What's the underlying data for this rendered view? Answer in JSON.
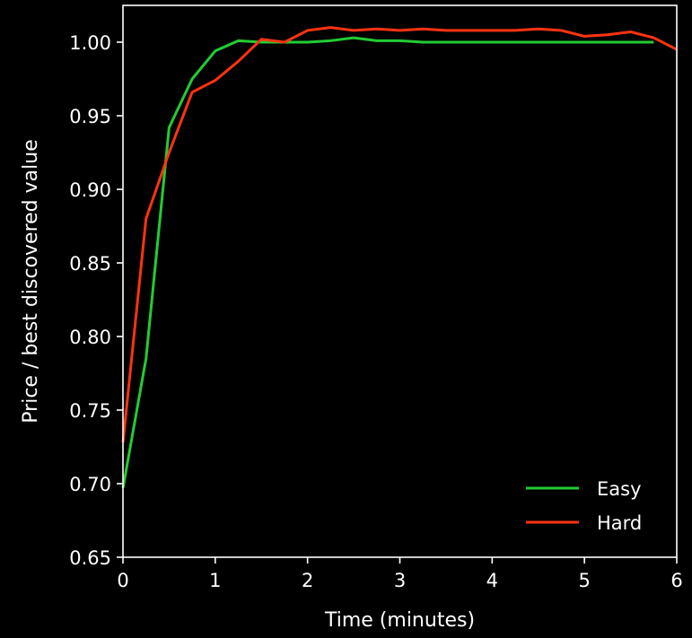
{
  "chart_data": {
    "type": "line",
    "title": "",
    "xlabel": "Time (minutes)",
    "ylabel": "Price / best discovered value",
    "xlim": [
      0,
      6
    ],
    "ylim": [
      0.65,
      1.025
    ],
    "xticks": [
      0,
      1,
      2,
      3,
      4,
      5,
      6
    ],
    "yticks": [
      0.65,
      0.7,
      0.75,
      0.8,
      0.85,
      0.9,
      0.95,
      1.0
    ],
    "xtick_labels": [
      "0",
      "1",
      "2",
      "3",
      "4",
      "5",
      "6"
    ],
    "ytick_labels": [
      "0.65",
      "0.70",
      "0.75",
      "0.80",
      "0.85",
      "0.90",
      "0.95",
      "1.00"
    ],
    "grid": false,
    "legend_position": "bottom-right",
    "background": "#000000",
    "axis_color": "#ffffff",
    "series": [
      {
        "name": "Easy",
        "color": "#22cc33",
        "x": [
          0,
          0.25,
          0.5,
          0.75,
          1.0,
          1.25,
          1.5,
          1.75,
          2.0,
          2.25,
          2.5,
          2.75,
          3.0,
          3.25,
          3.5,
          3.75,
          4.0,
          4.25,
          4.5,
          4.75,
          5.0,
          5.25,
          5.5,
          5.75
        ],
        "y": [
          0.697,
          0.785,
          0.942,
          0.975,
          0.994,
          1.001,
          1.0,
          1.0,
          1.0,
          1.001,
          1.003,
          1.001,
          1.001,
          1.0,
          1.0,
          1.0,
          1.0,
          1.0,
          1.0,
          1.0,
          1.0,
          1.0,
          1.0,
          1.0
        ]
      },
      {
        "name": "Hard",
        "color": "#ff3311",
        "x": [
          0,
          0.25,
          0.5,
          0.75,
          1.0,
          1.25,
          1.5,
          1.75,
          2.0,
          2.25,
          2.5,
          2.75,
          3.0,
          3.25,
          3.5,
          3.75,
          4.0,
          4.25,
          4.5,
          4.75,
          5.0,
          5.25,
          5.5,
          5.75,
          6.0
        ],
        "y": [
          0.728,
          0.88,
          0.925,
          0.966,
          0.974,
          0.987,
          1.002,
          1.0,
          1.008,
          1.01,
          1.008,
          1.009,
          1.008,
          1.009,
          1.008,
          1.008,
          1.008,
          1.008,
          1.009,
          1.008,
          1.004,
          1.005,
          1.007,
          1.003,
          0.995
        ]
      }
    ]
  }
}
